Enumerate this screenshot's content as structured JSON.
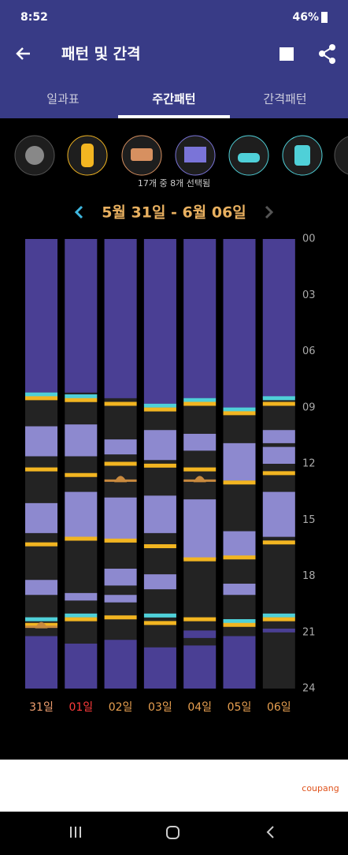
{
  "status_bar": {
    "time": "8:52",
    "battery": "46%"
  },
  "header": {
    "title": "패턴 및 간격"
  },
  "tabs": [
    "일과표",
    "주간패턴",
    "간격패턴"
  ],
  "selection_note": "17개 중 8개 선택됨",
  "date_range": "5월 31일 - 6월 06일",
  "chart_data": {
    "type": "timeline",
    "ylim": [
      0,
      24
    ],
    "yticks": [
      {
        "value": 0,
        "label": "00"
      },
      {
        "value": 3,
        "label": "03"
      },
      {
        "value": 6,
        "label": "06"
      },
      {
        "value": 9,
        "label": "09"
      },
      12,
      15,
      18,
      21,
      24
    ],
    "colors": {
      "sleep": "#4a3f94",
      "nap": "#8d89cf",
      "feed": "#f2b521",
      "bath": "#4fd0d8",
      "poop": "#c98a3e",
      "empty": "#232323"
    },
    "days": [
      {
        "label": "31일",
        "label_color": "#f0a070",
        "sleep": [
          [
            0,
            8.2
          ],
          [
            21.2,
            24
          ]
        ],
        "naps": [
          [
            10,
            11.6
          ],
          [
            14.1,
            15.7
          ],
          [
            18.2,
            19
          ]
        ],
        "feeds": [
          8.5,
          12.3,
          16.3,
          20.6
        ],
        "baths": [
          8.3,
          20.3
        ],
        "poops": [
          20.7
        ]
      },
      {
        "label": "01일",
        "label_color": "#ff3b3b",
        "sleep": [
          [
            0,
            8.2
          ],
          [
            21.6,
            24
          ]
        ],
        "naps": [
          [
            9.9,
            11.6
          ],
          [
            13.5,
            15.9
          ],
          [
            18.9,
            19.3
          ]
        ],
        "feeds": [
          8.6,
          12.6,
          16,
          20.3
        ],
        "baths": [
          8.4,
          20.1
        ],
        "poops": []
      },
      {
        "label": "02일",
        "label_color": "#e8a050",
        "sleep": [
          [
            0,
            8.5
          ],
          [
            21.4,
            24
          ]
        ],
        "naps": [
          [
            10.7,
            11.5
          ],
          [
            13.8,
            16
          ],
          [
            17.6,
            18.5
          ],
          [
            19,
            19.4
          ]
        ],
        "feeds": [
          8.8,
          12,
          16.1,
          20.2
        ],
        "baths": [],
        "poops": [
          12.9
        ]
      },
      {
        "label": "03일",
        "label_color": "#e8a050",
        "sleep": [
          [
            0,
            8.9
          ],
          [
            21.8,
            24
          ]
        ],
        "naps": [
          [
            10.2,
            11.8
          ],
          [
            13.7,
            15.7
          ],
          [
            17.9,
            18.7
          ]
        ],
        "feeds": [
          9.1,
          12.1,
          16.4,
          20.5
        ],
        "baths": [
          8.9,
          20.1
        ],
        "poops": []
      },
      {
        "label": "04일",
        "label_color": "#e8a050",
        "sleep": [
          [
            0,
            8.5
          ],
          [
            20.9,
            21.3
          ],
          [
            21.7,
            24
          ]
        ],
        "naps": [
          [
            10.4,
            11.3
          ],
          [
            13.9,
            17.1
          ]
        ],
        "feeds": [
          8.8,
          12.3,
          17.1,
          20.3
        ],
        "baths": [
          8.6
        ],
        "poops": [
          12.9
        ]
      },
      {
        "label": "05일",
        "label_color": "#e8a050",
        "sleep": [
          [
            0,
            9
          ],
          [
            21.2,
            24
          ]
        ],
        "naps": [
          [
            10.9,
            12.9
          ],
          [
            15.6,
            17
          ],
          [
            18.4,
            19
          ]
        ],
        "feeds": [
          9.3,
          13,
          17,
          20.6
        ],
        "baths": [
          9.1,
          20.4
        ],
        "poops": []
      },
      {
        "label": "06일",
        "label_color": "#e8a050",
        "sleep": [
          [
            0,
            8.5
          ],
          [
            20.8,
            21
          ]
        ],
        "naps": [
          [
            10.2,
            10.9
          ],
          [
            11.1,
            12
          ],
          [
            13.5,
            15.9
          ]
        ],
        "feeds": [
          8.8,
          12.5,
          16.2,
          20.3
        ],
        "baths": [
          8.5,
          20.1
        ],
        "poops": []
      }
    ]
  },
  "ad": {
    "brand": "coupang"
  }
}
